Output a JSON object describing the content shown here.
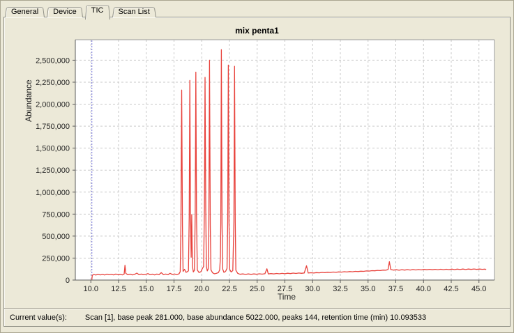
{
  "tabs": [
    {
      "label": "General",
      "active": false
    },
    {
      "label": "Device",
      "active": false
    },
    {
      "label": "TIC",
      "active": true
    },
    {
      "label": "Scan List",
      "active": false
    }
  ],
  "status": {
    "label": "Current value(s):",
    "value": "Scan [1], base peak 281.000, base abundance 5022.000, peaks 144, retention time (min) 10.093533"
  },
  "chart_data": {
    "type": "line",
    "title": "mix penta1",
    "xlabel": "Time",
    "ylabel": "Abundance",
    "xlim": [
      8.6,
      46.4
    ],
    "ylim": [
      0,
      2733000
    ],
    "grid": true,
    "cursor_time": 10.093533,
    "colors": {
      "trace": "#e8423c",
      "cursor": "#7070d8",
      "grid": "#c9c9c9",
      "plot_bg": "#ffffff",
      "axis": "#5a5a5a",
      "frame": "#9a9a9a"
    },
    "xticks": [
      {
        "v": 10.0,
        "label": "10.0"
      },
      {
        "v": 12.5,
        "label": "12.5"
      },
      {
        "v": 15.0,
        "label": "15.0"
      },
      {
        "v": 17.5,
        "label": "17.5"
      },
      {
        "v": 20.0,
        "label": "20.0"
      },
      {
        "v": 22.5,
        "label": "22.5"
      },
      {
        "v": 25.0,
        "label": "25.0"
      },
      {
        "v": 27.5,
        "label": "27.5"
      },
      {
        "v": 30.0,
        "label": "30.0"
      },
      {
        "v": 32.5,
        "label": "32.5"
      },
      {
        "v": 35.0,
        "label": "35.0"
      },
      {
        "v": 37.5,
        "label": "37.5"
      },
      {
        "v": 40.0,
        "label": "40.0"
      },
      {
        "v": 42.5,
        "label": "42.5"
      },
      {
        "v": 45.0,
        "label": "45.0"
      }
    ],
    "yticks": [
      {
        "v": 0,
        "label": "0"
      },
      {
        "v": 250000,
        "label": "250,000"
      },
      {
        "v": 500000,
        "label": "500,000"
      },
      {
        "v": 750000,
        "label": "750,000"
      },
      {
        "v": 1000000,
        "label": "1,000,000"
      },
      {
        "v": 1250000,
        "label": "1,250,000"
      },
      {
        "v": 1500000,
        "label": "1,500,000"
      },
      {
        "v": 1750000,
        "label": "1,750,000"
      },
      {
        "v": 2000000,
        "label": "2,000,000"
      },
      {
        "v": 2250000,
        "label": "2,250,000"
      },
      {
        "v": 2500000,
        "label": "2,500,000"
      }
    ],
    "points": [
      [
        10.093,
        5000
      ],
      [
        10.13,
        52000
      ],
      [
        10.25,
        63000
      ],
      [
        10.45,
        57000
      ],
      [
        10.65,
        66000
      ],
      [
        10.85,
        59000
      ],
      [
        11.05,
        65000
      ],
      [
        11.25,
        58000
      ],
      [
        11.45,
        67000
      ],
      [
        11.65,
        60000
      ],
      [
        11.85,
        66000
      ],
      [
        12.05,
        59000
      ],
      [
        12.25,
        68000
      ],
      [
        12.45,
        61000
      ],
      [
        12.65,
        65000
      ],
      [
        12.85,
        59000
      ],
      [
        13.0,
        68000
      ],
      [
        13.08,
        168000
      ],
      [
        13.16,
        75000
      ],
      [
        13.35,
        60000
      ],
      [
        13.55,
        67000
      ],
      [
        13.75,
        59000
      ],
      [
        13.95,
        65000
      ],
      [
        14.15,
        79000
      ],
      [
        14.35,
        61000
      ],
      [
        14.55,
        68000
      ],
      [
        14.75,
        60000
      ],
      [
        14.95,
        66000
      ],
      [
        15.15,
        74000
      ],
      [
        15.35,
        60000
      ],
      [
        15.55,
        67000
      ],
      [
        15.75,
        59000
      ],
      [
        15.95,
        68000
      ],
      [
        16.15,
        62000
      ],
      [
        16.35,
        84000
      ],
      [
        16.55,
        62000
      ],
      [
        16.75,
        68000
      ],
      [
        16.95,
        61000
      ],
      [
        17.15,
        77000
      ],
      [
        17.35,
        63000
      ],
      [
        17.55,
        69000
      ],
      [
        17.75,
        62000
      ],
      [
        17.95,
        71000
      ],
      [
        18.06,
        95000
      ],
      [
        18.12,
        620000
      ],
      [
        18.19,
        2160000
      ],
      [
        18.26,
        620000
      ],
      [
        18.32,
        98000
      ],
      [
        18.45,
        122000
      ],
      [
        18.58,
        88000
      ],
      [
        18.72,
        96000
      ],
      [
        18.8,
        105000
      ],
      [
        18.87,
        720000
      ],
      [
        18.93,
        2270000
      ],
      [
        18.99,
        720000
      ],
      [
        19.05,
        260000
      ],
      [
        19.1,
        745000
      ],
      [
        19.16,
        160000
      ],
      [
        19.24,
        92000
      ],
      [
        19.34,
        112000
      ],
      [
        19.41,
        730000
      ],
      [
        19.47,
        2365000
      ],
      [
        19.53,
        730000
      ],
      [
        19.6,
        115000
      ],
      [
        19.75,
        86000
      ],
      [
        19.92,
        94000
      ],
      [
        20.05,
        128000
      ],
      [
        20.17,
        155000
      ],
      [
        20.24,
        820000
      ],
      [
        20.3,
        2305000
      ],
      [
        20.36,
        820000
      ],
      [
        20.42,
        155000
      ],
      [
        20.5,
        104000
      ],
      [
        20.58,
        125000
      ],
      [
        20.64,
        530000
      ],
      [
        20.7,
        2500000
      ],
      [
        20.77,
        620000
      ],
      [
        20.83,
        115000
      ],
      [
        20.98,
        82000
      ],
      [
        21.15,
        71000
      ],
      [
        21.32,
        76000
      ],
      [
        21.5,
        84000
      ],
      [
        21.62,
        115000
      ],
      [
        21.68,
        255000
      ],
      [
        21.72,
        640000
      ],
      [
        21.77,
        2620000
      ],
      [
        21.83,
        640000
      ],
      [
        21.89,
        125000
      ],
      [
        22.0,
        87000
      ],
      [
        22.15,
        98000
      ],
      [
        22.28,
        132000
      ],
      [
        22.34,
        660000
      ],
      [
        22.4,
        2445000
      ],
      [
        22.46,
        660000
      ],
      [
        22.52,
        122000
      ],
      [
        22.65,
        92000
      ],
      [
        22.8,
        108000
      ],
      [
        22.9,
        660000
      ],
      [
        22.96,
        2430000
      ],
      [
        23.02,
        660000
      ],
      [
        23.08,
        112000
      ],
      [
        23.25,
        76000
      ],
      [
        23.45,
        66000
      ],
      [
        23.7,
        70000
      ],
      [
        23.95,
        64000
      ],
      [
        24.2,
        70000
      ],
      [
        24.45,
        65000
      ],
      [
        24.7,
        70000
      ],
      [
        24.95,
        66000
      ],
      [
        25.2,
        71000
      ],
      [
        25.45,
        67000
      ],
      [
        25.7,
        72000
      ],
      [
        25.88,
        128000
      ],
      [
        26.0,
        70000
      ],
      [
        26.25,
        74000
      ],
      [
        26.5,
        70000
      ],
      [
        26.75,
        75000
      ],
      [
        27.0,
        71000
      ],
      [
        27.25,
        76000
      ],
      [
        27.5,
        72000
      ],
      [
        27.75,
        78000
      ],
      [
        28.0,
        74000
      ],
      [
        28.25,
        79000
      ],
      [
        28.5,
        75000
      ],
      [
        28.75,
        80000
      ],
      [
        29.0,
        77000
      ],
      [
        29.25,
        81000
      ],
      [
        29.45,
        162000
      ],
      [
        29.6,
        80000
      ],
      [
        29.85,
        83000
      ],
      [
        30.1,
        80000
      ],
      [
        30.35,
        85000
      ],
      [
        30.6,
        82000
      ],
      [
        30.85,
        87000
      ],
      [
        31.1,
        84000
      ],
      [
        31.35,
        89000
      ],
      [
        31.6,
        86000
      ],
      [
        31.85,
        91000
      ],
      [
        32.1,
        88000
      ],
      [
        32.35,
        93000
      ],
      [
        32.6,
        90000
      ],
      [
        32.85,
        95000
      ],
      [
        33.1,
        92000
      ],
      [
        33.35,
        97000
      ],
      [
        33.6,
        94000
      ],
      [
        33.85,
        99000
      ],
      [
        34.1,
        97000
      ],
      [
        34.35,
        101000
      ],
      [
        34.6,
        99000
      ],
      [
        34.85,
        104000
      ],
      [
        35.1,
        102000
      ],
      [
        35.35,
        107000
      ],
      [
        35.6,
        105000
      ],
      [
        35.85,
        110000
      ],
      [
        36.1,
        108000
      ],
      [
        36.35,
        113000
      ],
      [
        36.6,
        112000
      ],
      [
        36.8,
        120000
      ],
      [
        36.92,
        208000
      ],
      [
        37.05,
        120000
      ],
      [
        37.3,
        113000
      ],
      [
        37.55,
        117000
      ],
      [
        37.8,
        112000
      ],
      [
        38.05,
        118000
      ],
      [
        38.3,
        113000
      ],
      [
        38.55,
        119000
      ],
      [
        38.8,
        114000
      ],
      [
        39.05,
        120000
      ],
      [
        39.3,
        115000
      ],
      [
        39.55,
        120000
      ],
      [
        39.8,
        116000
      ],
      [
        40.05,
        121000
      ],
      [
        40.3,
        117000
      ],
      [
        40.55,
        122000
      ],
      [
        40.8,
        117000
      ],
      [
        41.05,
        122000
      ],
      [
        41.3,
        118000
      ],
      [
        41.55,
        123000
      ],
      [
        41.8,
        118000
      ],
      [
        42.05,
        123000
      ],
      [
        42.3,
        119000
      ],
      [
        42.55,
        124000
      ],
      [
        42.8,
        119000
      ],
      [
        43.05,
        124000
      ],
      [
        43.3,
        120000
      ],
      [
        43.55,
        125000
      ],
      [
        43.8,
        120000
      ],
      [
        44.05,
        125000
      ],
      [
        44.3,
        121000
      ],
      [
        44.55,
        126000
      ],
      [
        44.8,
        121000
      ],
      [
        45.05,
        125000
      ],
      [
        45.3,
        122000
      ],
      [
        45.55,
        124000
      ],
      [
        45.65,
        118000
      ]
    ]
  }
}
